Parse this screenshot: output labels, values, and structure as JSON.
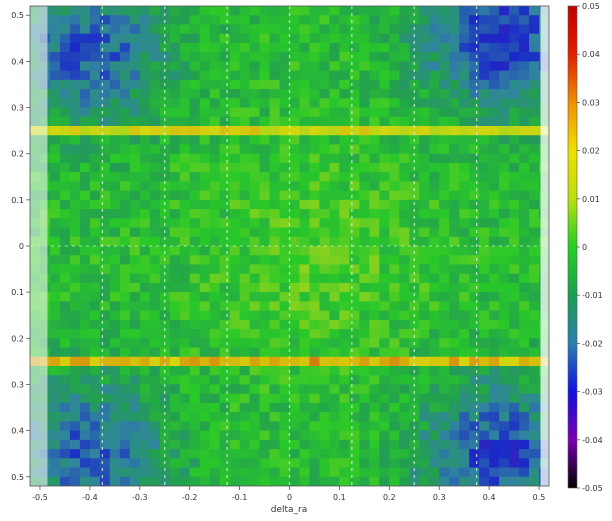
{
  "chart_data": {
    "type": "heatmap",
    "xlabel": "delta_ra",
    "ylabel": "",
    "colorbar_label": "",
    "xlim": [
      -0.52,
      0.52
    ],
    "ylim": [
      -0.52,
      0.52
    ],
    "x_ticks": [
      -0.5,
      -0.4,
      -0.3,
      -0.2,
      -0.1,
      0,
      0.1,
      0.2,
      0.3,
      0.4,
      0.5
    ],
    "x_tick_labels": [
      "-0.5",
      "-0.4",
      "-0.3",
      "-0.2",
      "-0.1",
      "0",
      "0.1",
      "0.2",
      "0.3",
      "0.4",
      "0.5"
    ],
    "y_ticks": [
      0.5,
      0.4,
      0.3,
      0.2,
      0.1,
      0,
      -0.1,
      -0.2,
      -0.3,
      -0.4,
      -0.5
    ],
    "y_tick_labels": [
      "0.5",
      "0.4",
      "0.3",
      "0.2",
      "0.1",
      "0",
      "0.1",
      "0.2",
      "0.3",
      "0.4",
      "0.5"
    ],
    "colorbar": {
      "range": [
        -0.05,
        0.05
      ],
      "ticks": [
        0.05,
        0.04,
        0.03,
        0.02,
        0.01,
        0,
        -0.01,
        -0.02,
        -0.03,
        -0.04,
        -0.05
      ],
      "tick_labels": [
        "0.05",
        "0.04",
        "0.03",
        "0.02",
        "0.01",
        "0",
        "-0.01",
        "-0.02",
        "-0.03",
        "-0.04",
        "-0.05"
      ],
      "stops": [
        {
          "value": -0.05,
          "color": "#000000"
        },
        {
          "value": -0.04,
          "color": "#7a00b0"
        },
        {
          "value": -0.03,
          "color": "#1010e0"
        },
        {
          "value": -0.02,
          "color": "#2a7fb0"
        },
        {
          "value": -0.01,
          "color": "#1a9f50"
        },
        {
          "value": 0.0,
          "color": "#22d022"
        },
        {
          "value": 0.01,
          "color": "#b8e010"
        },
        {
          "value": 0.02,
          "color": "#f0e000"
        },
        {
          "value": 0.03,
          "color": "#f09000"
        },
        {
          "value": 0.04,
          "color": "#e02000"
        },
        {
          "value": 0.05,
          "color": "#c00000"
        }
      ]
    },
    "grid": {
      "dashed_columns_x": [
        -0.375,
        -0.25,
        -0.125,
        0,
        0.125,
        0.25,
        0.375
      ],
      "dashed_row_y": 0
    },
    "features": {
      "bands": [
        {
          "y": 0.255,
          "level": 0.025
        },
        {
          "y": -0.255,
          "level": 0.035
        }
      ],
      "corner_regions": [
        {
          "x": -0.4,
          "y": 0.42,
          "level": -0.025
        },
        {
          "x": 0.42,
          "y": 0.45,
          "level": -0.03
        },
        {
          "x": -0.4,
          "y": -0.45,
          "level": -0.025
        },
        {
          "x": 0.42,
          "y": -0.45,
          "level": -0.028
        }
      ],
      "background_level": -0.003
    }
  }
}
